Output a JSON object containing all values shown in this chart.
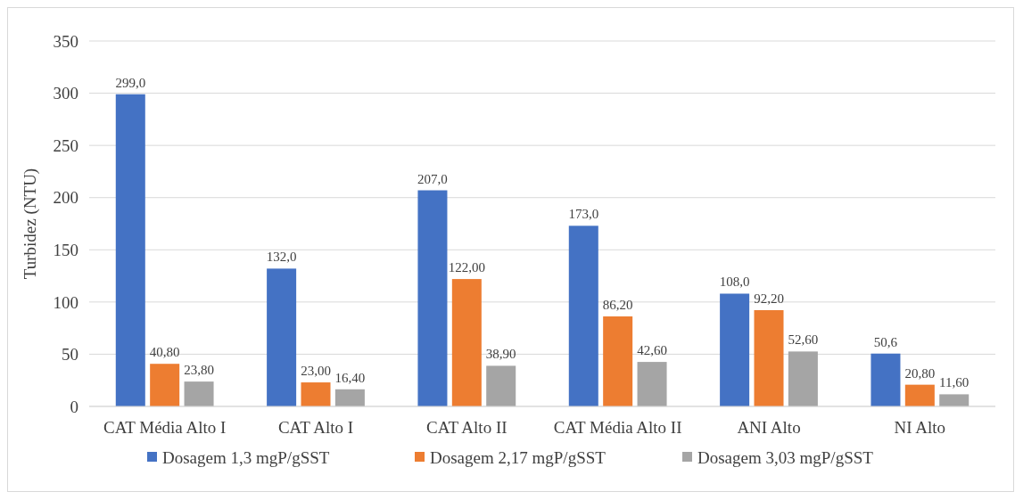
{
  "chart_data": {
    "type": "bar",
    "ylabel": "Turbidez (NTU)",
    "categories": [
      "CAT Média Alto I",
      "CAT Alto I",
      "CAT Alto II",
      "CAT Média Alto II",
      "ANI Alto",
      "NI Alto"
    ],
    "series": [
      {
        "name": "Dosagem 1,3 mgP/gSST",
        "color": "#4472c4",
        "values": [
          299.0,
          132.0,
          207.0,
          173.0,
          108.0,
          50.6
        ],
        "value_labels": [
          "299,0",
          "132,0",
          "207,0",
          "173,0",
          "108,0",
          "50,6"
        ]
      },
      {
        "name": "Dosagem 2,17 mgP/gSST",
        "color": "#ed7d31",
        "values": [
          40.8,
          23.0,
          122.0,
          86.2,
          92.2,
          20.8
        ],
        "value_labels": [
          "40,80",
          "23,00",
          "122,00",
          "86,20",
          "92,20",
          "20,80"
        ]
      },
      {
        "name": "Dosagem 3,03 mgP/gSST",
        "color": "#a5a5a5",
        "values": [
          23.8,
          16.4,
          38.9,
          42.6,
          52.6,
          11.6
        ],
        "value_labels": [
          "23,80",
          "16,40",
          "38,90",
          "42,60",
          "52,60",
          "11,60"
        ]
      }
    ],
    "ylim": [
      0,
      350
    ],
    "yticks": [
      0,
      50,
      100,
      150,
      200,
      250,
      300,
      350
    ],
    "grid": "y",
    "legend": "bottom"
  }
}
